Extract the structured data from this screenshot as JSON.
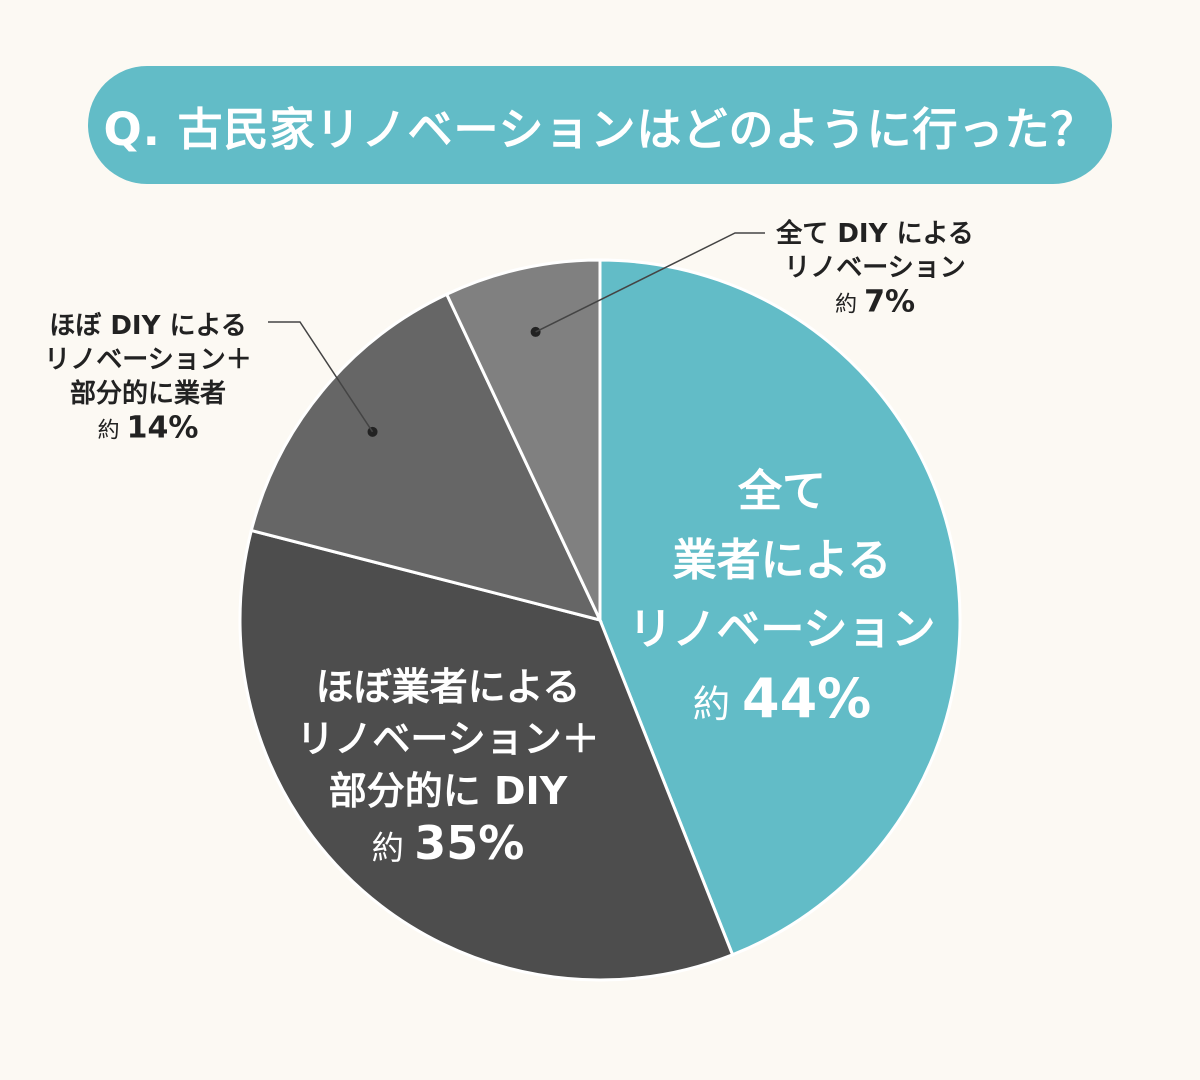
{
  "title": "Q. 古民家リノベーションはどのように行った？",
  "colors": {
    "accent": "#62bcc7",
    "background": "#fcf9f3",
    "slice_colors": [
      "#62bcc7",
      "#4d4d4d",
      "#666666",
      "#808080"
    ]
  },
  "chart_data": {
    "type": "pie",
    "title": "Q. 古民家リノベーションはどのように行った？",
    "slices": [
      {
        "label_lines": [
          "全て",
          "業者による",
          "リノベーション"
        ],
        "value_text": "約 44%",
        "prefix": "約",
        "pct": "44%",
        "value": 44
      },
      {
        "label_lines": [
          "ほぼ業者による",
          "リノベーション＋",
          "部分的に DIY"
        ],
        "value_text": "約 35%",
        "prefix": "約",
        "pct": "35%",
        "value": 35
      },
      {
        "label_lines": [
          "ほぼ DIY による",
          "リノベーション＋",
          "部分的に業者"
        ],
        "value_text": "約 14%",
        "prefix": "約",
        "pct": "14%",
        "value": 14
      },
      {
        "label_lines": [
          "全て DIY による",
          "リノベーション"
        ],
        "value_text": "約 7%",
        "prefix": "約",
        "pct": "7%",
        "value": 7
      }
    ]
  }
}
